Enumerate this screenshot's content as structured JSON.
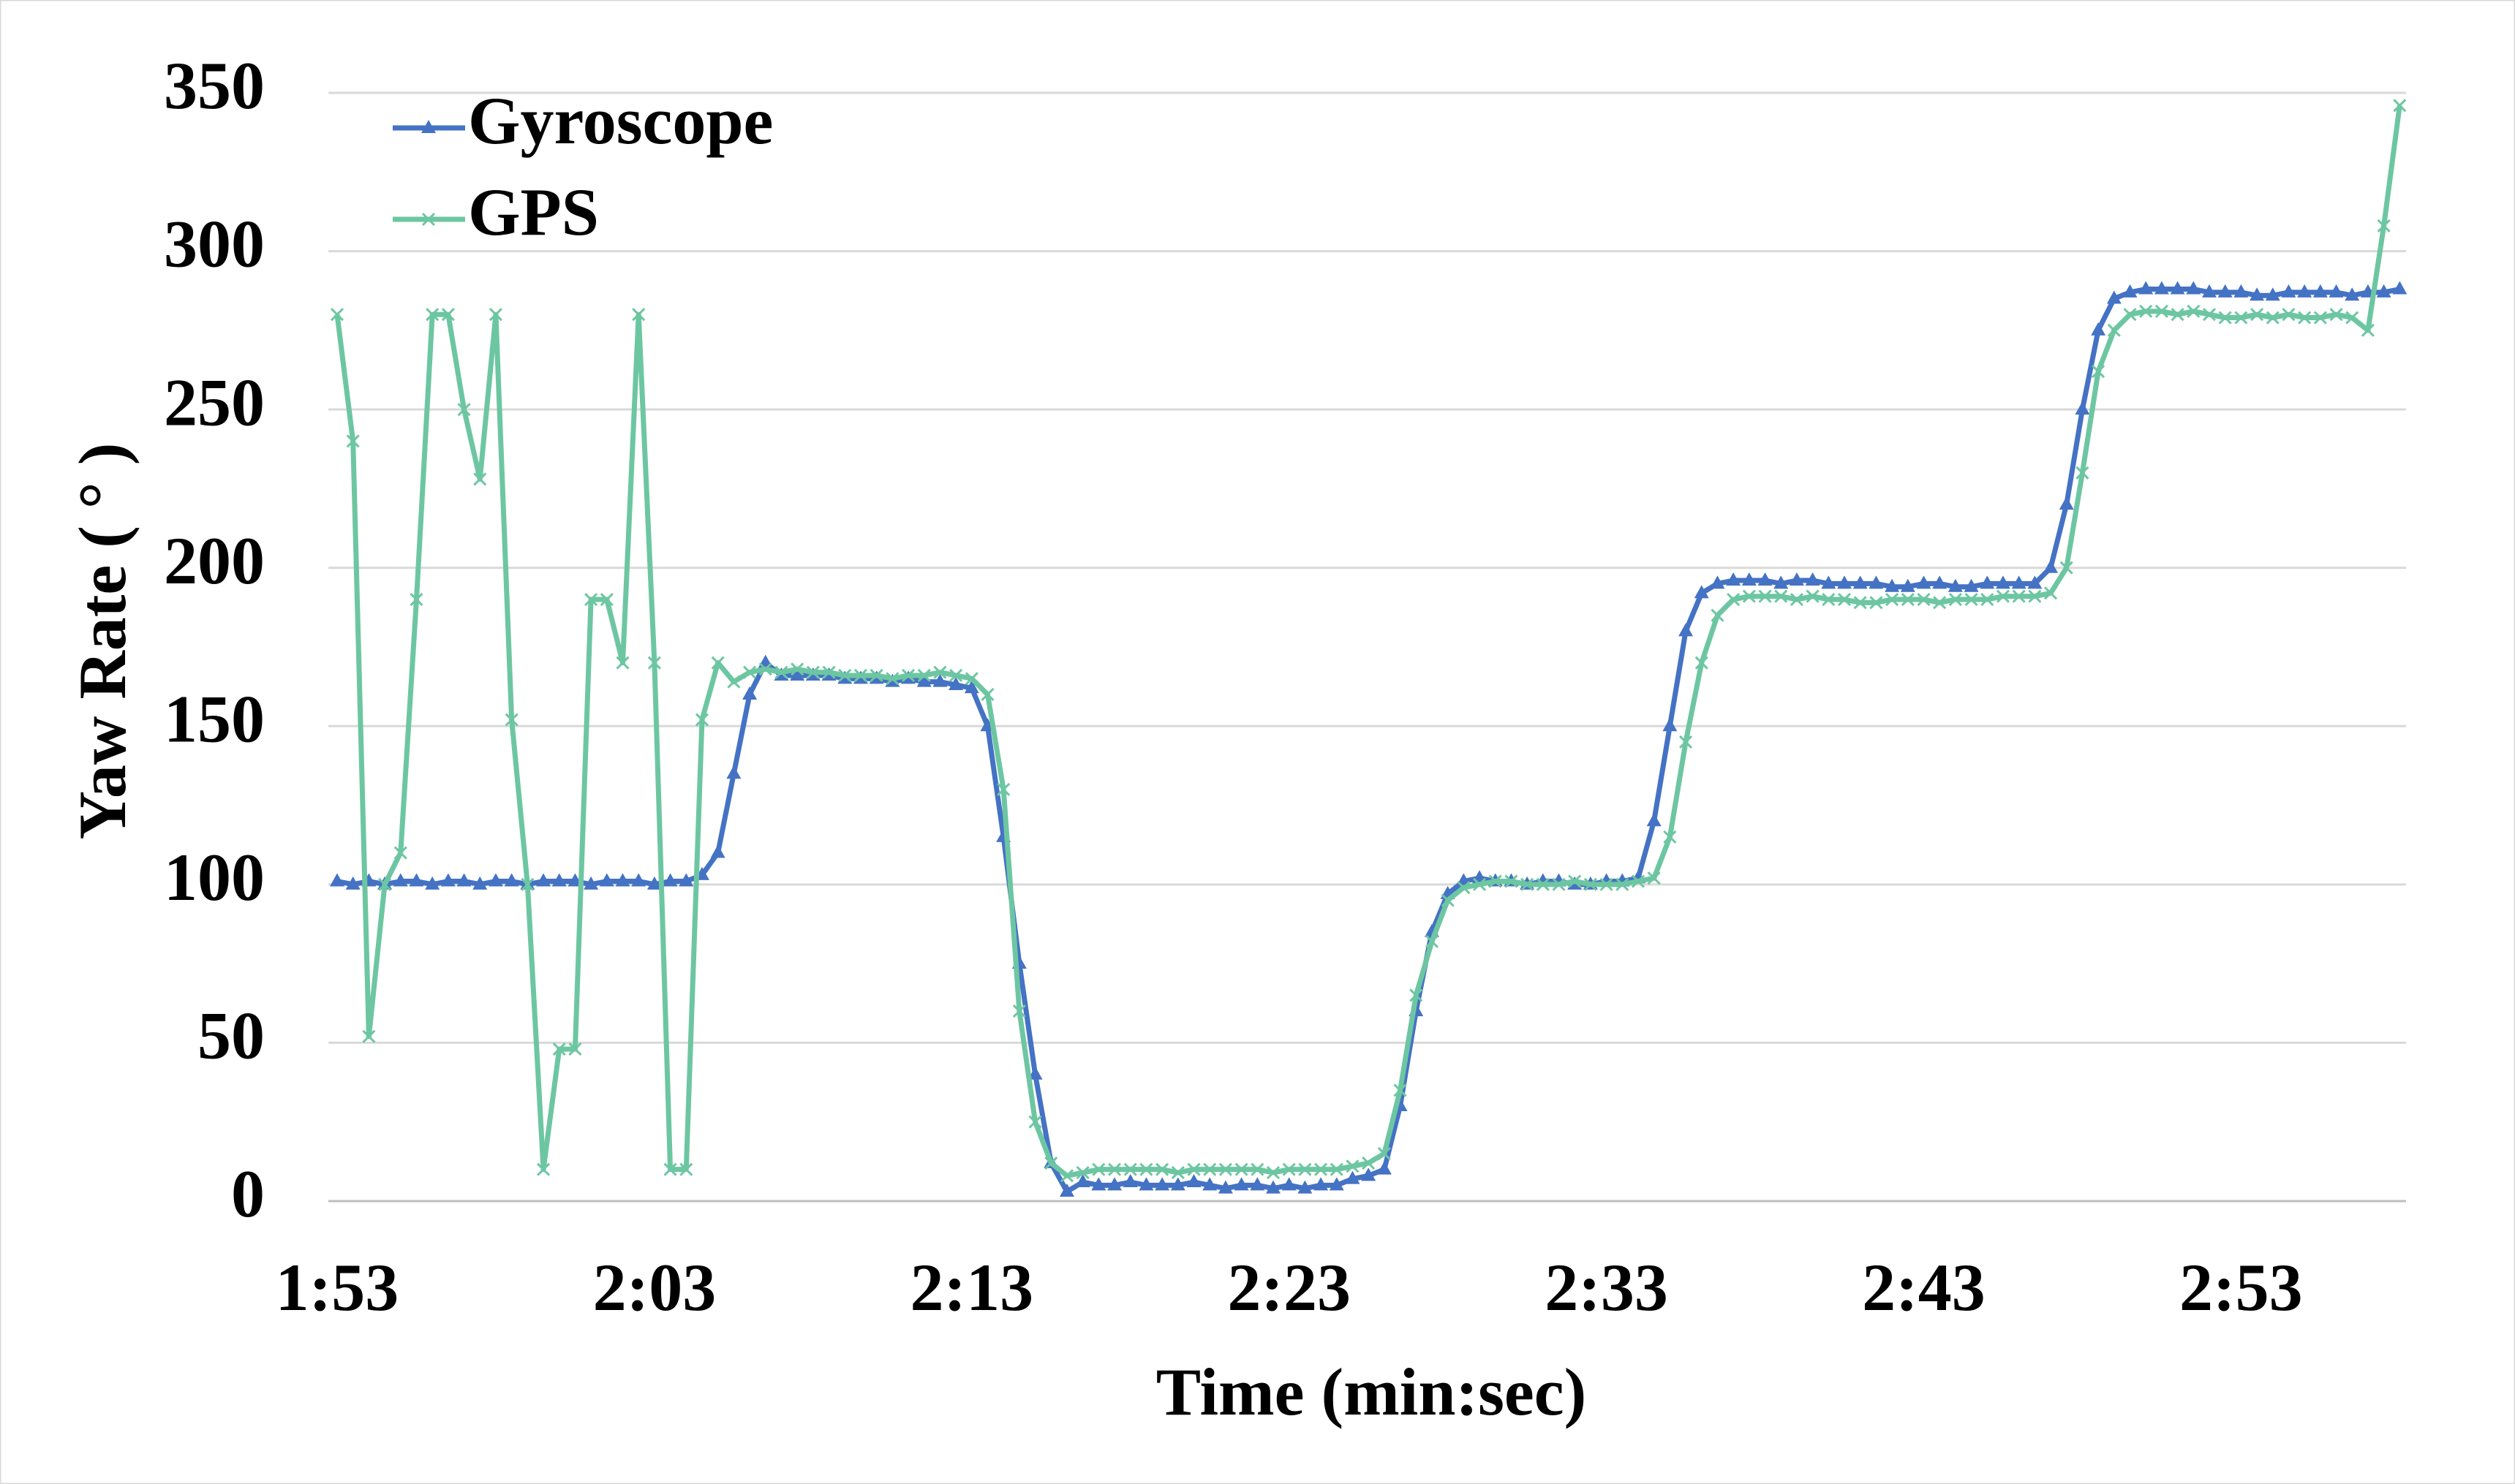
{
  "chart_data": {
    "type": "line",
    "x_label": "Time (min:sec)",
    "y_label": "Yaw Rate ( ° )",
    "x": [
      113,
      113.5,
      114,
      114.5,
      115,
      115.5,
      116,
      116.5,
      117,
      117.5,
      118,
      118.5,
      119,
      119.5,
      120,
      120.5,
      121,
      121.5,
      122,
      122.5,
      123,
      123.5,
      124,
      124.5,
      125,
      125.5,
      126,
      126.5,
      127,
      127.5,
      128,
      128.5,
      129,
      129.5,
      130,
      130.5,
      131,
      131.5,
      132,
      132.5,
      133,
      133.5,
      134,
      134.5,
      135,
      135.5,
      136,
      136.5,
      137,
      137.5,
      138,
      138.5,
      139,
      139.5,
      140,
      140.5,
      141,
      141.5,
      142,
      142.5,
      143,
      143.5,
      144,
      144.5,
      145,
      145.5,
      146,
      146.5,
      147,
      147.5,
      148,
      148.5,
      149,
      149.5,
      150,
      150.5,
      151,
      151.5,
      152,
      152.5,
      153,
      153.5,
      154,
      154.5,
      155,
      155.5,
      156,
      156.5,
      157,
      157.5,
      158,
      158.5,
      159,
      159.5,
      160,
      160.5,
      161,
      161.5,
      162,
      162.5,
      163,
      163.5,
      164,
      164.5,
      165,
      165.5,
      166,
      166.5,
      167,
      167.5,
      168,
      168.5,
      169,
      169.5,
      170,
      170.5,
      171,
      171.5,
      172,
      172.5,
      173,
      173.5,
      174,
      174.5,
      175,
      175.5,
      176,
      176.5,
      177,
      177.5,
      178
    ],
    "series": [
      {
        "name": "Gyroscope",
        "color": "#4472c4",
        "marker": "triangle",
        "values": [
          101,
          100,
          101,
          100,
          101,
          101,
          100,
          101,
          101,
          100,
          101,
          101,
          100,
          101,
          101,
          101,
          100,
          101,
          101,
          101,
          100,
          101,
          101,
          103,
          110,
          135,
          160,
          170,
          166,
          166,
          166,
          166,
          165,
          165,
          165,
          164,
          165,
          164,
          164,
          163,
          162,
          150,
          115,
          75,
          40,
          12,
          3,
          6,
          5,
          5,
          6,
          5,
          5,
          5,
          6,
          5,
          4,
          5,
          5,
          4,
          5,
          4,
          5,
          5,
          7,
          8,
          10,
          30,
          60,
          85,
          97,
          101,
          102,
          101,
          101,
          100,
          101,
          101,
          100,
          100,
          101,
          101,
          102,
          120,
          150,
          180,
          192,
          195,
          196,
          196,
          196,
          195,
          196,
          196,
          195,
          195,
          195,
          195,
          194,
          194,
          195,
          195,
          194,
          194,
          195,
          195,
          195,
          195,
          200,
          220,
          250,
          275,
          285,
          287,
          288,
          288,
          288,
          288,
          287,
          287,
          287,
          286,
          286,
          287,
          287,
          287,
          287,
          286,
          287,
          287,
          288
        ]
      },
      {
        "name": "GPS",
        "color": "#6dc6a2",
        "marker": "x",
        "values": [
          280,
          240,
          52,
          100,
          110,
          190,
          280,
          280,
          250,
          228,
          280,
          152,
          100,
          10,
          48,
          48,
          190,
          190,
          170,
          280,
          170,
          10,
          10,
          152,
          170,
          164,
          167,
          168,
          167,
          168,
          167,
          167,
          166,
          166,
          166,
          165,
          166,
          166,
          167,
          166,
          165,
          160,
          130,
          60,
          25,
          12,
          8,
          9,
          10,
          10,
          10,
          10,
          10,
          9,
          10,
          10,
          10,
          10,
          10,
          9,
          10,
          10,
          10,
          10,
          11,
          12,
          15,
          35,
          65,
          82,
          95,
          99,
          100,
          101,
          101,
          100,
          100,
          100,
          101,
          100,
          100,
          100,
          101,
          102,
          115,
          145,
          170,
          185,
          190,
          191,
          191,
          191,
          190,
          191,
          190,
          190,
          189,
          189,
          190,
          190,
          190,
          189,
          190,
          190,
          190,
          191,
          191,
          191,
          192,
          200,
          230,
          262,
          275,
          280,
          281,
          281,
          280,
          281,
          280,
          279,
          279,
          280,
          279,
          280,
          279,
          279,
          280,
          279,
          275,
          308,
          346
        ]
      }
    ],
    "xlim": [
      113,
      178.2
    ],
    "xticks": [
      {
        "value": 113,
        "label": "1:53"
      },
      {
        "value": 123,
        "label": "2:03"
      },
      {
        "value": 133,
        "label": "2:13"
      },
      {
        "value": 143,
        "label": "2:23"
      },
      {
        "value": 153,
        "label": "2:33"
      },
      {
        "value": 163,
        "label": "2:43"
      },
      {
        "value": 173,
        "label": "2:53"
      }
    ],
    "ylim": [
      0,
      350
    ],
    "yticks": [
      0,
      50,
      100,
      150,
      200,
      250,
      300,
      350
    ],
    "grid": true,
    "legend": "upper left"
  }
}
